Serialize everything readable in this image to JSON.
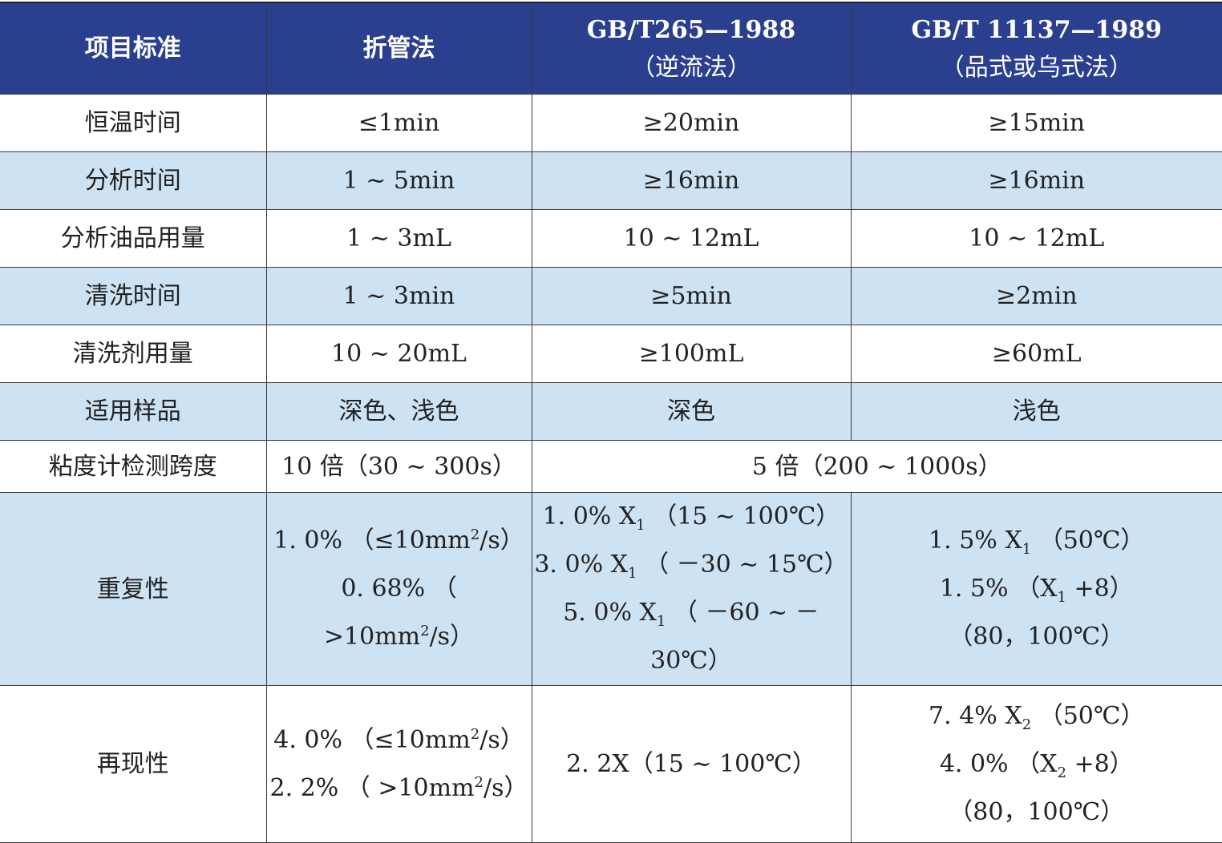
{
  "table": {
    "header": {
      "col1": "项目标准",
      "col2": "折管法",
      "col3_line1": "GB/T265—1988",
      "col3_line2": "（逆流法）",
      "col4_line1": "GB/T 11137—1989",
      "col4_line2": "（品式或乌式法）"
    },
    "rows": [
      {
        "item": "恒温时间",
        "c1": "≤1min",
        "c2": "≥20min",
        "c3": "≥15min"
      },
      {
        "item": "分析时间",
        "c1": "1 ~ 5min",
        "c2": "≥16min",
        "c3": "≥16min"
      },
      {
        "item": "分析油品用量",
        "c1": "1 ~ 3mL",
        "c2": "10 ~ 12mL",
        "c3": "10 ~ 12mL"
      },
      {
        "item": "清洗时间",
        "c1": "1 ~ 3min",
        "c2": "≥5min",
        "c3": "≥2min"
      },
      {
        "item": "清洗剂用量",
        "c1": "10 ~ 20mL",
        "c2": "≥100mL",
        "c3": "≥60mL"
      },
      {
        "item": "适用样品",
        "c1": "深色、浅色",
        "c2": "深色",
        "c3": "浅色"
      }
    ],
    "span_row": {
      "item": "粘度计检测跨度",
      "c1": "10 倍（30 ~ 300s）",
      "c23": "5 倍（200 ~ 1000s）"
    },
    "repeat": {
      "item": "重复性",
      "c1": [
        {
          "a": "1. 0% （≤10mm",
          "sup": "2",
          "b": "/s）"
        },
        {
          "a": "0. 68% （ >10mm",
          "sup": "2",
          "b": "/s）"
        }
      ],
      "c2": [
        {
          "a": "1. 0% X",
          "sub": "1",
          "b": " （15 ~ 100℃）"
        },
        {
          "a": "3. 0% X",
          "sub": "1",
          "b": " （ －30 ~ 15℃）"
        },
        {
          "a": "5. 0% X",
          "sub": "1",
          "b": " （ －60 ~ －30℃）"
        }
      ],
      "c3": [
        {
          "a": "1. 5% X",
          "sub": "1",
          "b": " （50℃）"
        },
        {
          "a": "1. 5% （X",
          "sub": "1",
          "b": " +8）"
        },
        {
          "a": "（80，100℃）",
          "sub": "",
          "b": ""
        }
      ]
    },
    "reproduce": {
      "item": "再现性",
      "c1": [
        {
          "a": "4. 0% （≤10mm",
          "sup": "2",
          "b": "/s）"
        },
        {
          "a": "2. 2% （ >10mm",
          "sup": "2",
          "b": "/s）"
        }
      ],
      "c2": "2. 2X（15 ~ 100℃）",
      "c3": [
        {
          "a": "7. 4% X",
          "sub": "2",
          "b": " （50℃）"
        },
        {
          "a": "4. 0% （X",
          "sub": "2",
          "b": " +8）"
        },
        {
          "a": "（80，100℃）",
          "sub": "",
          "b": ""
        }
      ]
    }
  }
}
